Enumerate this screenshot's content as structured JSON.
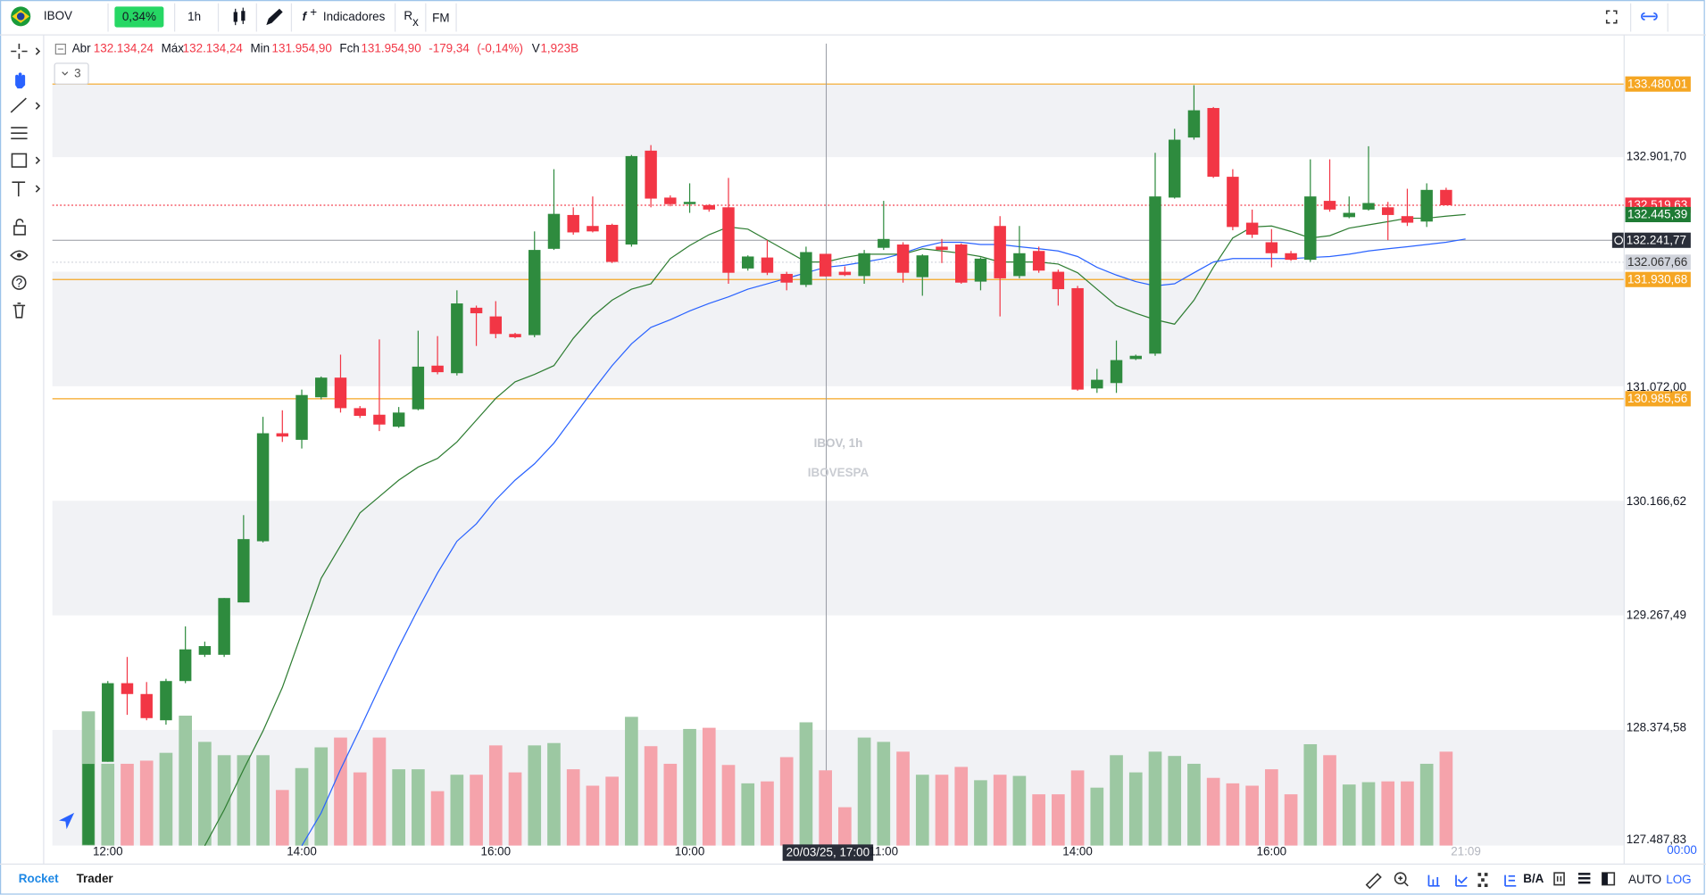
{
  "toolbar": {
    "symbol": "IBOV",
    "change": "0,34%",
    "interval": "1h",
    "indicators": "Indicadores",
    "replay": "R",
    "replay_sub": "x",
    "formula": "FM"
  },
  "chart_data": {
    "type": "candlestick",
    "watermark": [
      "IBOV, 1h",
      "IBOVESPA"
    ],
    "info": [
      {
        "label": "Abr",
        "value": "132.134,24"
      },
      {
        "label": "Máx",
        "value": "132.134,24"
      },
      {
        "label": "Min",
        "value": "131.954,90"
      },
      {
        "label": "Fch",
        "value": "131.954,90"
      }
    ],
    "change": "-179,34",
    "change_pct": "(-0,14%)",
    "volume_info": {
      "label": "V",
      "value": "1,923B"
    },
    "collapse": "3",
    "categories": [
      null,
      "12:00",
      null,
      null,
      null,
      null,
      null,
      null,
      null,
      null,
      null,
      "14:00",
      null,
      null,
      null,
      null,
      null,
      null,
      null,
      null,
      null,
      "16:00",
      null,
      null,
      null,
      null,
      null,
      null,
      null,
      null,
      null,
      "10:00",
      null,
      null,
      null,
      null,
      null,
      null,
      null,
      null,
      null,
      "11:00",
      null,
      null,
      null,
      null,
      null,
      null,
      null,
      null,
      null,
      "14:00",
      null,
      null,
      null,
      null,
      null,
      null,
      null,
      null,
      null,
      "16:00",
      null,
      null,
      null,
      null,
      null,
      null,
      null,
      null,
      null
    ],
    "open": [
      127450,
      128108,
      128731,
      128645,
      128437,
      128748,
      128956,
      128956,
      129371,
      129856,
      130712,
      130660,
      130997,
      131153,
      130911,
      130859,
      130764,
      130902,
      131248,
      131188,
      131707,
      131638,
      131499,
      131490,
      132174,
      132442,
      132355,
      132364,
      132208,
      132952,
      132580,
      132528,
      132520,
      132503,
      132018,
      132105,
      131975,
      131888,
      132134.24,
      131992,
      131958,
      132182,
      132208,
      131949,
      132191,
      132208,
      131914,
      132355,
      131958,
      132157,
      131992,
      131862,
      131067,
      131110,
      131300,
      131343,
      132580,
      133056,
      133290,
      132745,
      132381,
      132226,
      132139,
      132087,
      132554,
      132425,
      132485,
      132503,
      132433,
      132390,
      132641
    ],
    "high": [
      128091,
      128748,
      128939,
      128740,
      128766,
      129181,
      129060,
      129406,
      130063,
      130842,
      130894,
      131058,
      131162,
      131335,
      130928,
      131456,
      130920,
      131525,
      131482,
      131845,
      131724,
      131759,
      131508,
      132312,
      132805,
      132503,
      132589,
      132373,
      132918,
      132996,
      132598,
      132693,
      132528,
      132736,
      132122,
      132243,
      131992,
      132191,
      132134.24,
      132035,
      132165,
      132554,
      132226,
      132131,
      132252,
      132217,
      132105,
      132433,
      132355,
      132191,
      132009,
      131880,
      131222,
      131447,
      131335,
      132935,
      133125,
      133471,
      133298,
      132805,
      132485,
      132330,
      132157,
      132883,
      132883,
      132589,
      132987,
      132546,
      132650,
      132693,
      132658
    ],
    "low": [
      127450,
      128108,
      128480,
      128437,
      128402,
      128731,
      128939,
      128939,
      129371,
      129847,
      130643,
      130591,
      130980,
      130876,
      130833,
      130729,
      130755,
      130894,
      131179,
      131170,
      131404,
      131465,
      131465,
      131473,
      132165,
      132286,
      132304,
      132061,
      132191,
      132503,
      132511,
      132459,
      132468,
      131897,
      132001,
      131966,
      131845,
      131871,
      131954.9,
      131958,
      131897,
      132165,
      131906,
      131802,
      132061,
      131897,
      131845,
      131638,
      131940,
      131984,
      131724,
      131049,
      131032,
      131032,
      131292,
      131326,
      132572,
      133039,
      132736,
      132321,
      132260,
      132027,
      132079,
      132070,
      132468,
      132416,
      132477,
      132243,
      132355,
      132347,
      132519.63
    ],
    "close": [
      128091,
      128731,
      128645,
      128454,
      128748,
      128999,
      129025,
      129406,
      129873,
      130712,
      130686,
      131015,
      131153,
      130911,
      130850,
      130781,
      130876,
      131240,
      131196,
      131741,
      131663,
      131499,
      131473,
      132165,
      132451,
      132304,
      132312,
      132070,
      132909,
      132572,
      132528,
      132546,
      132485,
      131984,
      132113,
      131984,
      131906,
      132148,
      131954.9,
      131966,
      132139,
      132252,
      131984,
      132122,
      132165,
      131906,
      132096,
      131940,
      132139,
      132001,
      131854,
      131058,
      131136,
      131292,
      131326,
      132589,
      133039,
      133272,
      132745,
      132347,
      132286,
      132139,
      132087,
      132589,
      132485,
      132459,
      132537,
      132442,
      132381,
      132641,
      132519.63
    ],
    "volume": [
      3.43,
      2.09,
      2.09,
      2.17,
      2.37,
      3.32,
      2.65,
      2.31,
      2.31,
      2.31,
      1.42,
      1.98,
      2.51,
      2.76,
      1.87,
      2.76,
      1.95,
      1.95,
      1.39,
      1.81,
      1.81,
      2.56,
      1.87,
      2.56,
      2.62,
      1.95,
      1.53,
      1.76,
      3.29,
      2.54,
      2.09,
      2.98,
      3.01,
      2.06,
      1.59,
      1.64,
      2.26,
      3.15,
      1.923,
      0.98,
      2.76,
      2.65,
      2.4,
      1.81,
      1.81,
      2.01,
      1.67,
      1.81,
      1.78,
      1.31,
      1.31,
      1.92,
      1.48,
      2.31,
      1.87,
      2.4,
      2.29,
      2.09,
      1.73,
      1.59,
      1.53,
      1.95,
      1.31,
      2.59,
      2.31,
      1.56,
      1.62,
      1.64,
      1.64,
      2.09,
      2.4
    ],
    "up_color": "#2e8b3e",
    "down_color": "#f23645",
    "volume_up_color": "#9cc8a2",
    "volume_down_color": "#f5a3ab",
    "overlays": [
      {
        "color": "#2e7d32",
        "values": [
          null,
          null,
          null,
          null,
          null,
          null,
          127442,
          127728,
          128048,
          128351,
          128697,
          129129,
          129562,
          129821,
          130081,
          130210,
          130340,
          130444,
          130513,
          130643,
          130816,
          130989,
          131119,
          131179,
          131248,
          131465,
          131638,
          131767,
          131854,
          131897,
          132096,
          132200,
          132286,
          132347,
          132330,
          132243,
          132157,
          132070,
          132070,
          132105,
          132131,
          132131,
          132131,
          132174,
          132157,
          132139,
          132113,
          132070,
          132070,
          132070,
          132053,
          131984,
          131854,
          131724,
          131663,
          131612,
          131577,
          131767,
          132027,
          132260,
          132347,
          132355,
          132312,
          132260,
          132278,
          132338,
          132364,
          132390,
          132416,
          132416,
          132433,
          132445.39
        ]
      },
      {
        "color": "#2962ff",
        "values": [
          null,
          null,
          null,
          null,
          null,
          null,
          null,
          null,
          null,
          null,
          null,
          127442,
          127702,
          128048,
          128368,
          128697,
          129017,
          129319,
          129605,
          129856,
          129994,
          130184,
          130340,
          130470,
          130634,
          130842,
          131049,
          131248,
          131421,
          131551,
          131612,
          131681,
          131741,
          131793,
          131854,
          131897,
          131940,
          131984,
          132027,
          132044,
          132070,
          132096,
          132139,
          132191,
          132226,
          132226,
          132208,
          132208,
          132191,
          132174,
          132157,
          132113,
          132027,
          131966,
          131914,
          131880,
          131897,
          131984,
          132070,
          132096,
          132096,
          132096,
          132096,
          132105,
          132113,
          132131,
          132157,
          132174,
          132191,
          132208,
          132226,
          132252
        ]
      }
    ],
    "ylim": [
      127444,
      133800
    ],
    "yticks": [
      {
        "value": 132901.7,
        "label": "132.901,70"
      },
      {
        "value": 131072.0,
        "label": "131.072,00"
      },
      {
        "value": 130166.62,
        "label": "130.166,62"
      },
      {
        "value": 129267.49,
        "label": "129.267,49"
      },
      {
        "value": 128374.58,
        "label": "128.374,58"
      },
      {
        "value": 127487.83,
        "label": "127.487,83"
      }
    ],
    "price_lines": [
      {
        "value": 133480.01,
        "label": "133.480,01",
        "color": "#f5a623",
        "style": "solid"
      },
      {
        "value": 130985.56,
        "label": "130.985,56",
        "color": "#f5a623",
        "style": "solid"
      },
      {
        "value": 131930.68,
        "label": "131.930,68",
        "color": "#f5a623",
        "style": "solid"
      },
      {
        "value": 132067.66,
        "label": "132.067,66",
        "color": "#d1d4dc",
        "style": "dotted"
      },
      {
        "value": 132519.63,
        "label": "132.519,63",
        "color": "#f23645",
        "style": "dotted"
      },
      {
        "value": 132445.39,
        "label": "132.445,39",
        "color": "#1e7b34",
        "style": "none"
      }
    ],
    "crosshair": {
      "value": 132241.77,
      "label": "132.241,77",
      "time": "20/03/25, 17:00"
    },
    "current_time": "21:09",
    "countdown": "00:00"
  },
  "footer": {
    "brand": [
      "Rocket",
      "Trader"
    ],
    "ba": "B/A",
    "auto": "AUTO",
    "log": "LOG"
  }
}
